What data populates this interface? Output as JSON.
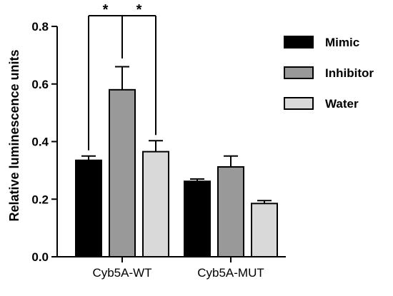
{
  "chart_data": {
    "type": "bar",
    "ylabel": "Relative luminescence units",
    "xlabel": "",
    "ylim": [
      0,
      0.8
    ],
    "yticks": [
      0.0,
      0.2,
      0.4,
      0.6,
      0.8
    ],
    "ytick_labels": [
      "0.0",
      "0.2",
      "0.4",
      "0.6",
      "0.8"
    ],
    "categories": [
      "Cyb5A-WT",
      "Cyb5A-MUT"
    ],
    "series": [
      {
        "name": "Mimic",
        "color": "#000000",
        "values": [
          0.335,
          0.262
        ],
        "errors": [
          0.015,
          0.008
        ]
      },
      {
        "name": "Inhibitor",
        "color": "#999999",
        "values": [
          0.58,
          0.312
        ],
        "errors": [
          0.08,
          0.038
        ]
      },
      {
        "name": "Water",
        "color": "#d9d9d9",
        "values": [
          0.365,
          0.185
        ],
        "errors": [
          0.038,
          0.01
        ]
      }
    ],
    "legend_position": "top-right",
    "grid": false,
    "significance": [
      {
        "category": "Cyb5A-WT",
        "from": "Mimic",
        "to": "Inhibitor",
        "label": "*"
      },
      {
        "category": "Cyb5A-WT",
        "from": "Inhibitor",
        "to": "Water",
        "label": "*"
      }
    ]
  }
}
